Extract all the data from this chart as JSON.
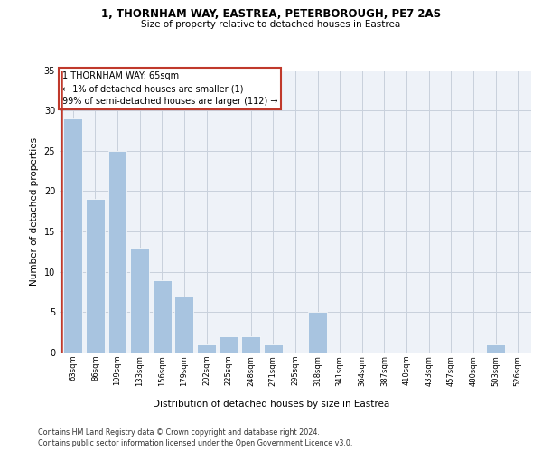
{
  "title_line1": "1, THORNHAM WAY, EASTREA, PETERBOROUGH, PE7 2AS",
  "title_line2": "Size of property relative to detached houses in Eastrea",
  "xlabel": "Distribution of detached houses by size in Eastrea",
  "ylabel": "Number of detached properties",
  "categories": [
    "63sqm",
    "86sqm",
    "109sqm",
    "133sqm",
    "156sqm",
    "179sqm",
    "202sqm",
    "225sqm",
    "248sqm",
    "271sqm",
    "295sqm",
    "318sqm",
    "341sqm",
    "364sqm",
    "387sqm",
    "410sqm",
    "433sqm",
    "457sqm",
    "480sqm",
    "503sqm",
    "526sqm"
  ],
  "values": [
    29,
    19,
    25,
    13,
    9,
    7,
    1,
    2,
    2,
    1,
    0,
    5,
    0,
    0,
    0,
    0,
    0,
    0,
    0,
    1,
    0
  ],
  "bar_color": "#a8c4e0",
  "highlight_color": "#c0392b",
  "ylim": [
    0,
    35
  ],
  "yticks": [
    0,
    5,
    10,
    15,
    20,
    25,
    30,
    35
  ],
  "annotation_box_text": "1 THORNHAM WAY: 65sqm\n← 1% of detached houses are smaller (1)\n99% of semi-detached houses are larger (112) →",
  "footer_line1": "Contains HM Land Registry data © Crown copyright and database right 2024.",
  "footer_line2": "Contains public sector information licensed under the Open Government Licence v3.0.",
  "background_color": "#eef2f8",
  "grid_color": "#c8d0dc"
}
